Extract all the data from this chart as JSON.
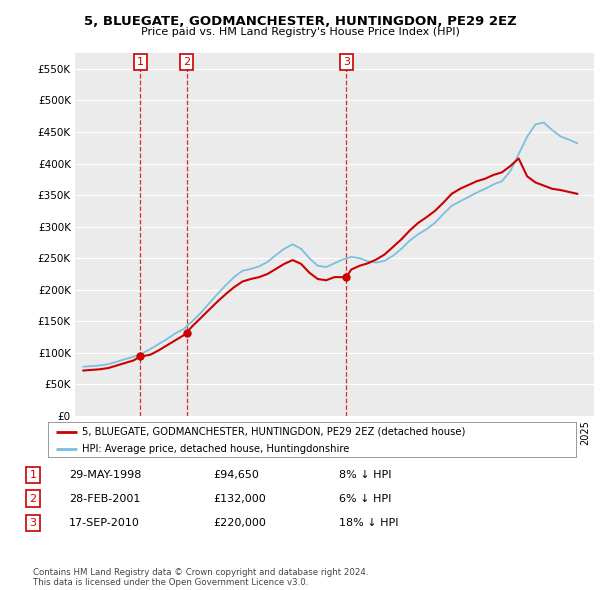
{
  "title": "5, BLUEGATE, GODMANCHESTER, HUNTINGDON, PE29 2EZ",
  "subtitle": "Price paid vs. HM Land Registry's House Price Index (HPI)",
  "ylabel_ticks": [
    "£0",
    "£50K",
    "£100K",
    "£150K",
    "£200K",
    "£250K",
    "£300K",
    "£350K",
    "£400K",
    "£450K",
    "£500K",
    "£550K"
  ],
  "ytick_values": [
    0,
    50000,
    100000,
    150000,
    200000,
    250000,
    300000,
    350000,
    400000,
    450000,
    500000,
    550000
  ],
  "hpi_color": "#7bbfdf",
  "price_color": "#cc0000",
  "transactions": [
    {
      "date_num": 1998.41,
      "price": 94650,
      "label": "1"
    },
    {
      "date_num": 2001.16,
      "price": 132000,
      "label": "2"
    },
    {
      "date_num": 2010.71,
      "price": 220000,
      "label": "3"
    }
  ],
  "legend_text_red": "5, BLUEGATE, GODMANCHESTER, HUNTINGDON, PE29 2EZ (detached house)",
  "legend_text_blue": "HPI: Average price, detached house, Huntingdonshire",
  "table_rows": [
    {
      "num": "1",
      "date": "29-MAY-1998",
      "price": "£94,650",
      "hpi": "8% ↓ HPI"
    },
    {
      "num": "2",
      "date": "28-FEB-2001",
      "price": "£132,000",
      "hpi": "6% ↓ HPI"
    },
    {
      "num": "3",
      "date": "17-SEP-2010",
      "price": "£220,000",
      "hpi": "18% ↓ HPI"
    }
  ],
  "footnote": "Contains HM Land Registry data © Crown copyright and database right 2024.\nThis data is licensed under the Open Government Licence v3.0.",
  "bg_color": "#ffffff",
  "plot_bg_color": "#ebebeb",
  "grid_color": "#ffffff",
  "xmin": 1994.5,
  "xmax": 2025.5,
  "ymin": 0,
  "ymax": 575000,
  "hpi_years": [
    1995.0,
    1995.5,
    1996.0,
    1996.5,
    1997.0,
    1997.5,
    1998.0,
    1998.5,
    1999.0,
    1999.5,
    2000.0,
    2000.5,
    2001.0,
    2001.5,
    2002.0,
    2002.5,
    2003.0,
    2003.5,
    2004.0,
    2004.5,
    2005.0,
    2005.5,
    2006.0,
    2006.5,
    2007.0,
    2007.5,
    2008.0,
    2008.5,
    2009.0,
    2009.5,
    2010.0,
    2010.5,
    2011.0,
    2011.5,
    2012.0,
    2012.5,
    2013.0,
    2013.5,
    2014.0,
    2014.5,
    2015.0,
    2015.5,
    2016.0,
    2016.5,
    2017.0,
    2017.5,
    2018.0,
    2018.5,
    2019.0,
    2019.5,
    2020.0,
    2020.5,
    2021.0,
    2021.5,
    2022.0,
    2022.5,
    2023.0,
    2023.5,
    2024.0,
    2024.5
  ],
  "hpi_values": [
    78000,
    79000,
    80000,
    82000,
    86000,
    90000,
    94000,
    99000,
    106000,
    114000,
    122000,
    131000,
    138000,
    150000,
    163000,
    178000,
    193000,
    207000,
    220000,
    230000,
    233000,
    237000,
    244000,
    255000,
    265000,
    272000,
    265000,
    250000,
    238000,
    236000,
    242000,
    248000,
    252000,
    250000,
    245000,
    243000,
    246000,
    254000,
    265000,
    278000,
    288000,
    296000,
    306000,
    320000,
    333000,
    340000,
    347000,
    354000,
    360000,
    367000,
    372000,
    388000,
    415000,
    442000,
    462000,
    465000,
    453000,
    443000,
    438000,
    432000
  ],
  "price_years": [
    1995.0,
    1995.5,
    1996.0,
    1996.5,
    1997.0,
    1997.5,
    1998.0,
    1998.41,
    1998.5,
    1999.0,
    1999.5,
    2000.0,
    2000.5,
    2001.0,
    2001.16,
    2001.5,
    2002.0,
    2002.5,
    2003.0,
    2003.5,
    2004.0,
    2004.5,
    2005.0,
    2005.5,
    2006.0,
    2006.5,
    2007.0,
    2007.5,
    2008.0,
    2008.5,
    2009.0,
    2009.5,
    2010.0,
    2010.71,
    2011.0,
    2011.5,
    2012.0,
    2012.5,
    2013.0,
    2013.5,
    2014.0,
    2014.5,
    2015.0,
    2015.5,
    2016.0,
    2016.5,
    2017.0,
    2017.5,
    2018.0,
    2018.5,
    2019.0,
    2019.5,
    2020.0,
    2020.5,
    2021.0,
    2021.5,
    2022.0,
    2022.5,
    2023.0,
    2023.5,
    2024.0,
    2024.5
  ],
  "price_values": [
    72000,
    73000,
    74000,
    76000,
    80000,
    84000,
    88000,
    94650,
    94650,
    97000,
    104000,
    112000,
    120000,
    128000,
    132000,
    142000,
    155000,
    168000,
    181000,
    193000,
    204000,
    213000,
    217000,
    220000,
    225000,
    233000,
    241000,
    247000,
    241000,
    227000,
    217000,
    215000,
    220000,
    220000,
    232000,
    238000,
    242000,
    248000,
    256000,
    268000,
    280000,
    294000,
    306000,
    315000,
    325000,
    338000,
    352000,
    360000,
    366000,
    372000,
    376000,
    382000,
    386000,
    396000,
    408000,
    380000,
    370000,
    365000,
    360000,
    358000,
    355000,
    352000
  ]
}
